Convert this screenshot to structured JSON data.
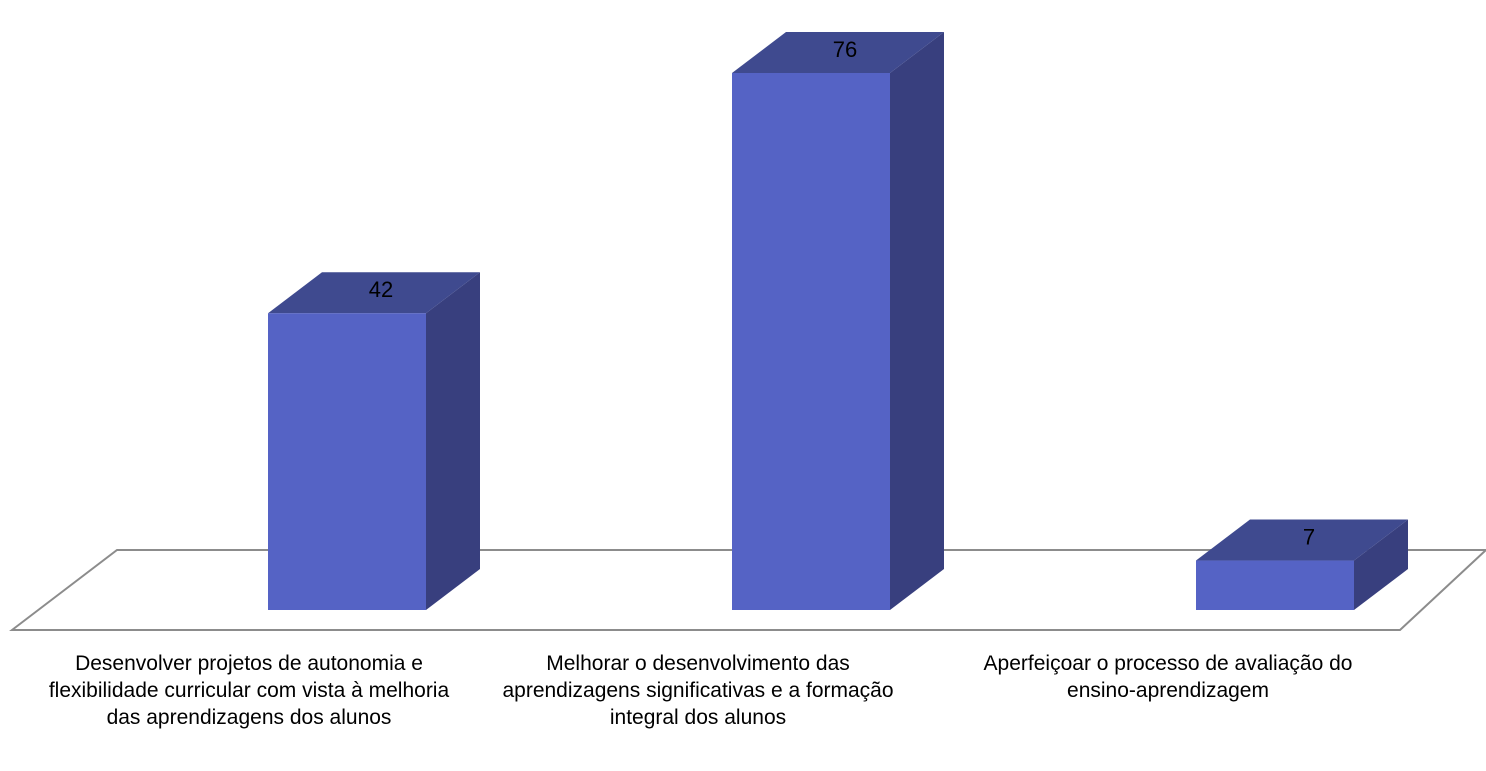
{
  "chart_data": {
    "type": "bar",
    "style": "3d-column",
    "categories": [
      "Desenvolver projetos de autonomia e flexibilidade curricular com vista à melhoria das aprendizagens dos alunos",
      "Melhorar o desenvolvimento das aprendizagens significativas e a formação integral dos alunos",
      "Aperfeiçoar o processo de avaliação do ensino-aprendizagem"
    ],
    "values": [
      42,
      76,
      7
    ],
    "data_labels": [
      "42",
      "76",
      "7"
    ],
    "title": "",
    "xlabel": "",
    "ylabel": "",
    "ylim": [
      0,
      80
    ],
    "grid": false,
    "legend": "none",
    "colors": {
      "bar_front": "#5563C5",
      "bar_top": "#3F4A8F",
      "bar_side": "#383F7E",
      "floor_line": "#8C8C8C"
    }
  }
}
